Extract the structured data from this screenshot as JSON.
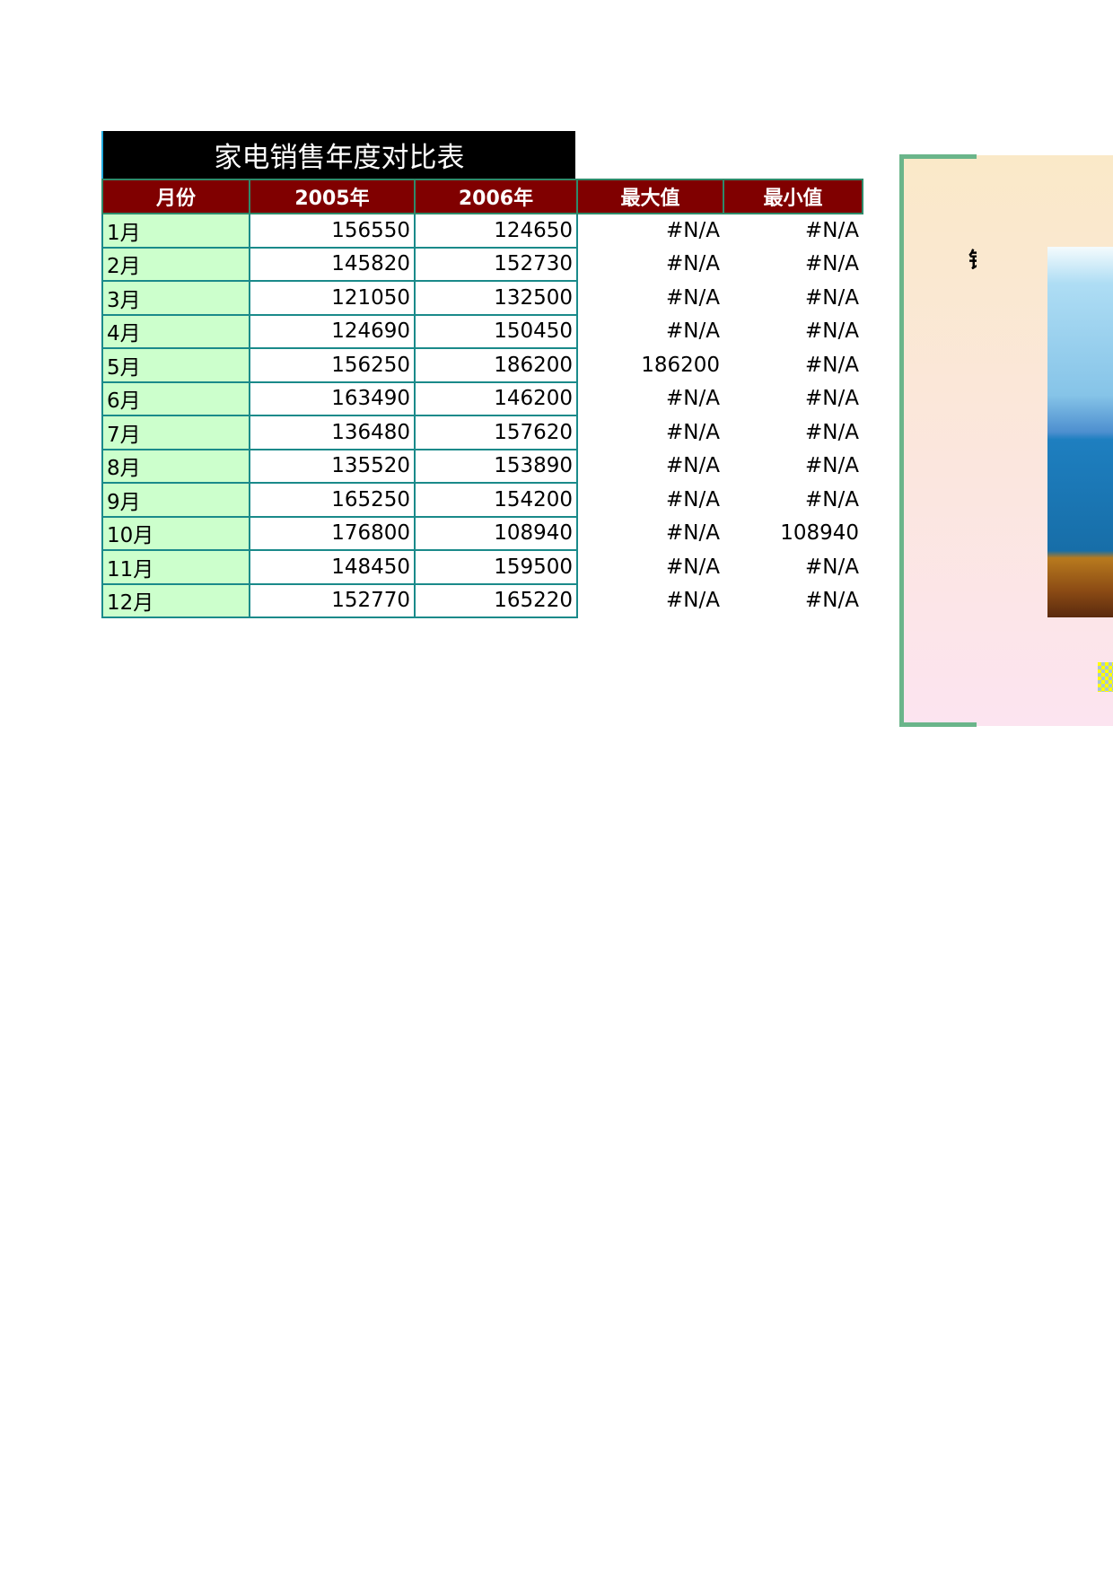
{
  "title": "家电销售年度对比表",
  "headers": [
    "月份",
    "2005年",
    "2006年",
    "最大值",
    "最小值"
  ],
  "rows": [
    [
      "1月",
      "156550",
      "124650",
      "#N/A",
      "#N/A"
    ],
    [
      "2月",
      "145820",
      "152730",
      "#N/A",
      "#N/A"
    ],
    [
      "3月",
      "121050",
      "132500",
      "#N/A",
      "#N/A"
    ],
    [
      "4月",
      "124690",
      "150450",
      "#N/A",
      "#N/A"
    ],
    [
      "5月",
      "156250",
      "186200",
      "186200",
      "#N/A"
    ],
    [
      "6月",
      "163490",
      "146200",
      "#N/A",
      "#N/A"
    ],
    [
      "7月",
      "136480",
      "157620",
      "#N/A",
      "#N/A"
    ],
    [
      "8月",
      "135520",
      "153890",
      "#N/A",
      "#N/A"
    ],
    [
      "9月",
      "165250",
      "154200",
      "#N/A",
      "#N/A"
    ],
    [
      "10月",
      "176800",
      "108940",
      "#N/A",
      "108940"
    ],
    [
      "11月",
      "148450",
      "159500",
      "#N/A",
      "#N/A"
    ],
    [
      "12月",
      "152770",
      "165220",
      "#N/A",
      "#N/A"
    ]
  ],
  "chart": {
    "title_fragment": "销"
  },
  "colors": {
    "header_bg": "#800000",
    "month_bg": "#ccffcc",
    "title_bg": "#000000",
    "frame": "#6ab58a"
  }
}
